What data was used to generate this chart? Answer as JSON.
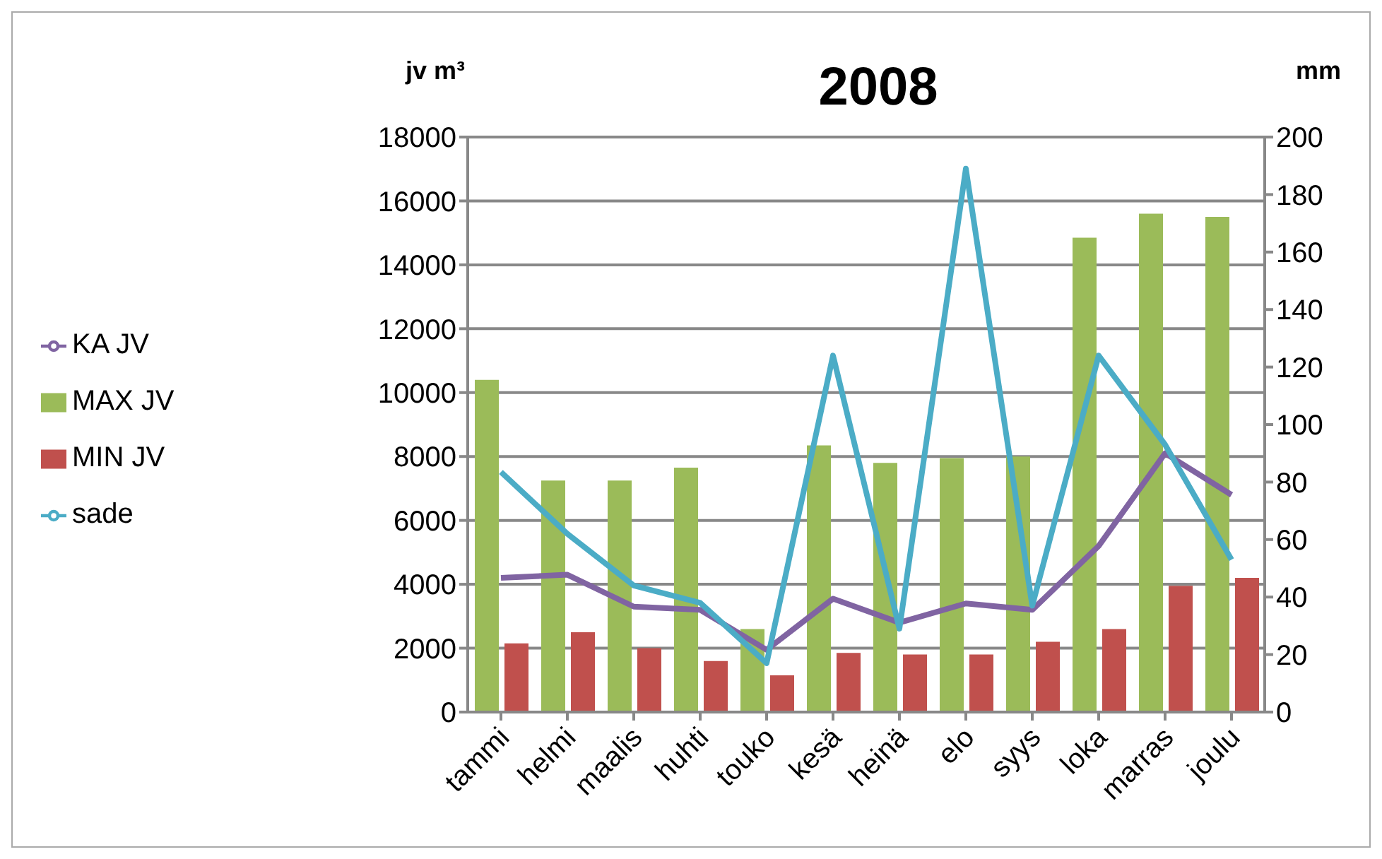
{
  "chart_data": {
    "type": "bar",
    "title": "2008",
    "ylabel": "jv m³",
    "y2label": "mm",
    "categories": [
      "tammi",
      "helmi",
      "maalis",
      "huhti",
      "touko",
      "kesä",
      "heinä",
      "elo",
      "syys",
      "loka",
      "marras",
      "joulu"
    ],
    "series": [
      {
        "name": "MAX JV",
        "color": "#9bbb59",
        "values": [
          10400,
          7250,
          7250,
          7650,
          2600,
          8350,
          7800,
          7950,
          8000,
          14850,
          15600,
          15500
        ]
      },
      {
        "name": "MIN JV",
        "color": "#c0504d",
        "values": [
          2150,
          2500,
          2000,
          1600,
          1150,
          1850,
          1800,
          1800,
          2200,
          2600,
          3950,
          4200
        ]
      },
      {
        "name": "KA JV",
        "type": "line",
        "color": "#8064a2",
        "values": [
          4200,
          4300,
          3300,
          3200,
          1950,
          3550,
          2800,
          3400,
          3200,
          5200,
          8100,
          6800
        ]
      },
      {
        "name": "sade",
        "type": "line",
        "axis": "y2",
        "color": "#4bacc6",
        "values": [
          83.5,
          62,
          44,
          38,
          17,
          124,
          29,
          189,
          37,
          124,
          93,
          53
        ]
      }
    ],
    "ylim": [
      0,
      18000
    ],
    "yticks": [
      0,
      2000,
      4000,
      6000,
      8000,
      10000,
      12000,
      14000,
      16000,
      18000
    ],
    "y2lim": [
      0,
      200
    ],
    "y2ticks": [
      0,
      20,
      40,
      60,
      80,
      100,
      120,
      140,
      160,
      180,
      200
    ],
    "grid": "y",
    "legend": "left",
    "marker": "none"
  }
}
